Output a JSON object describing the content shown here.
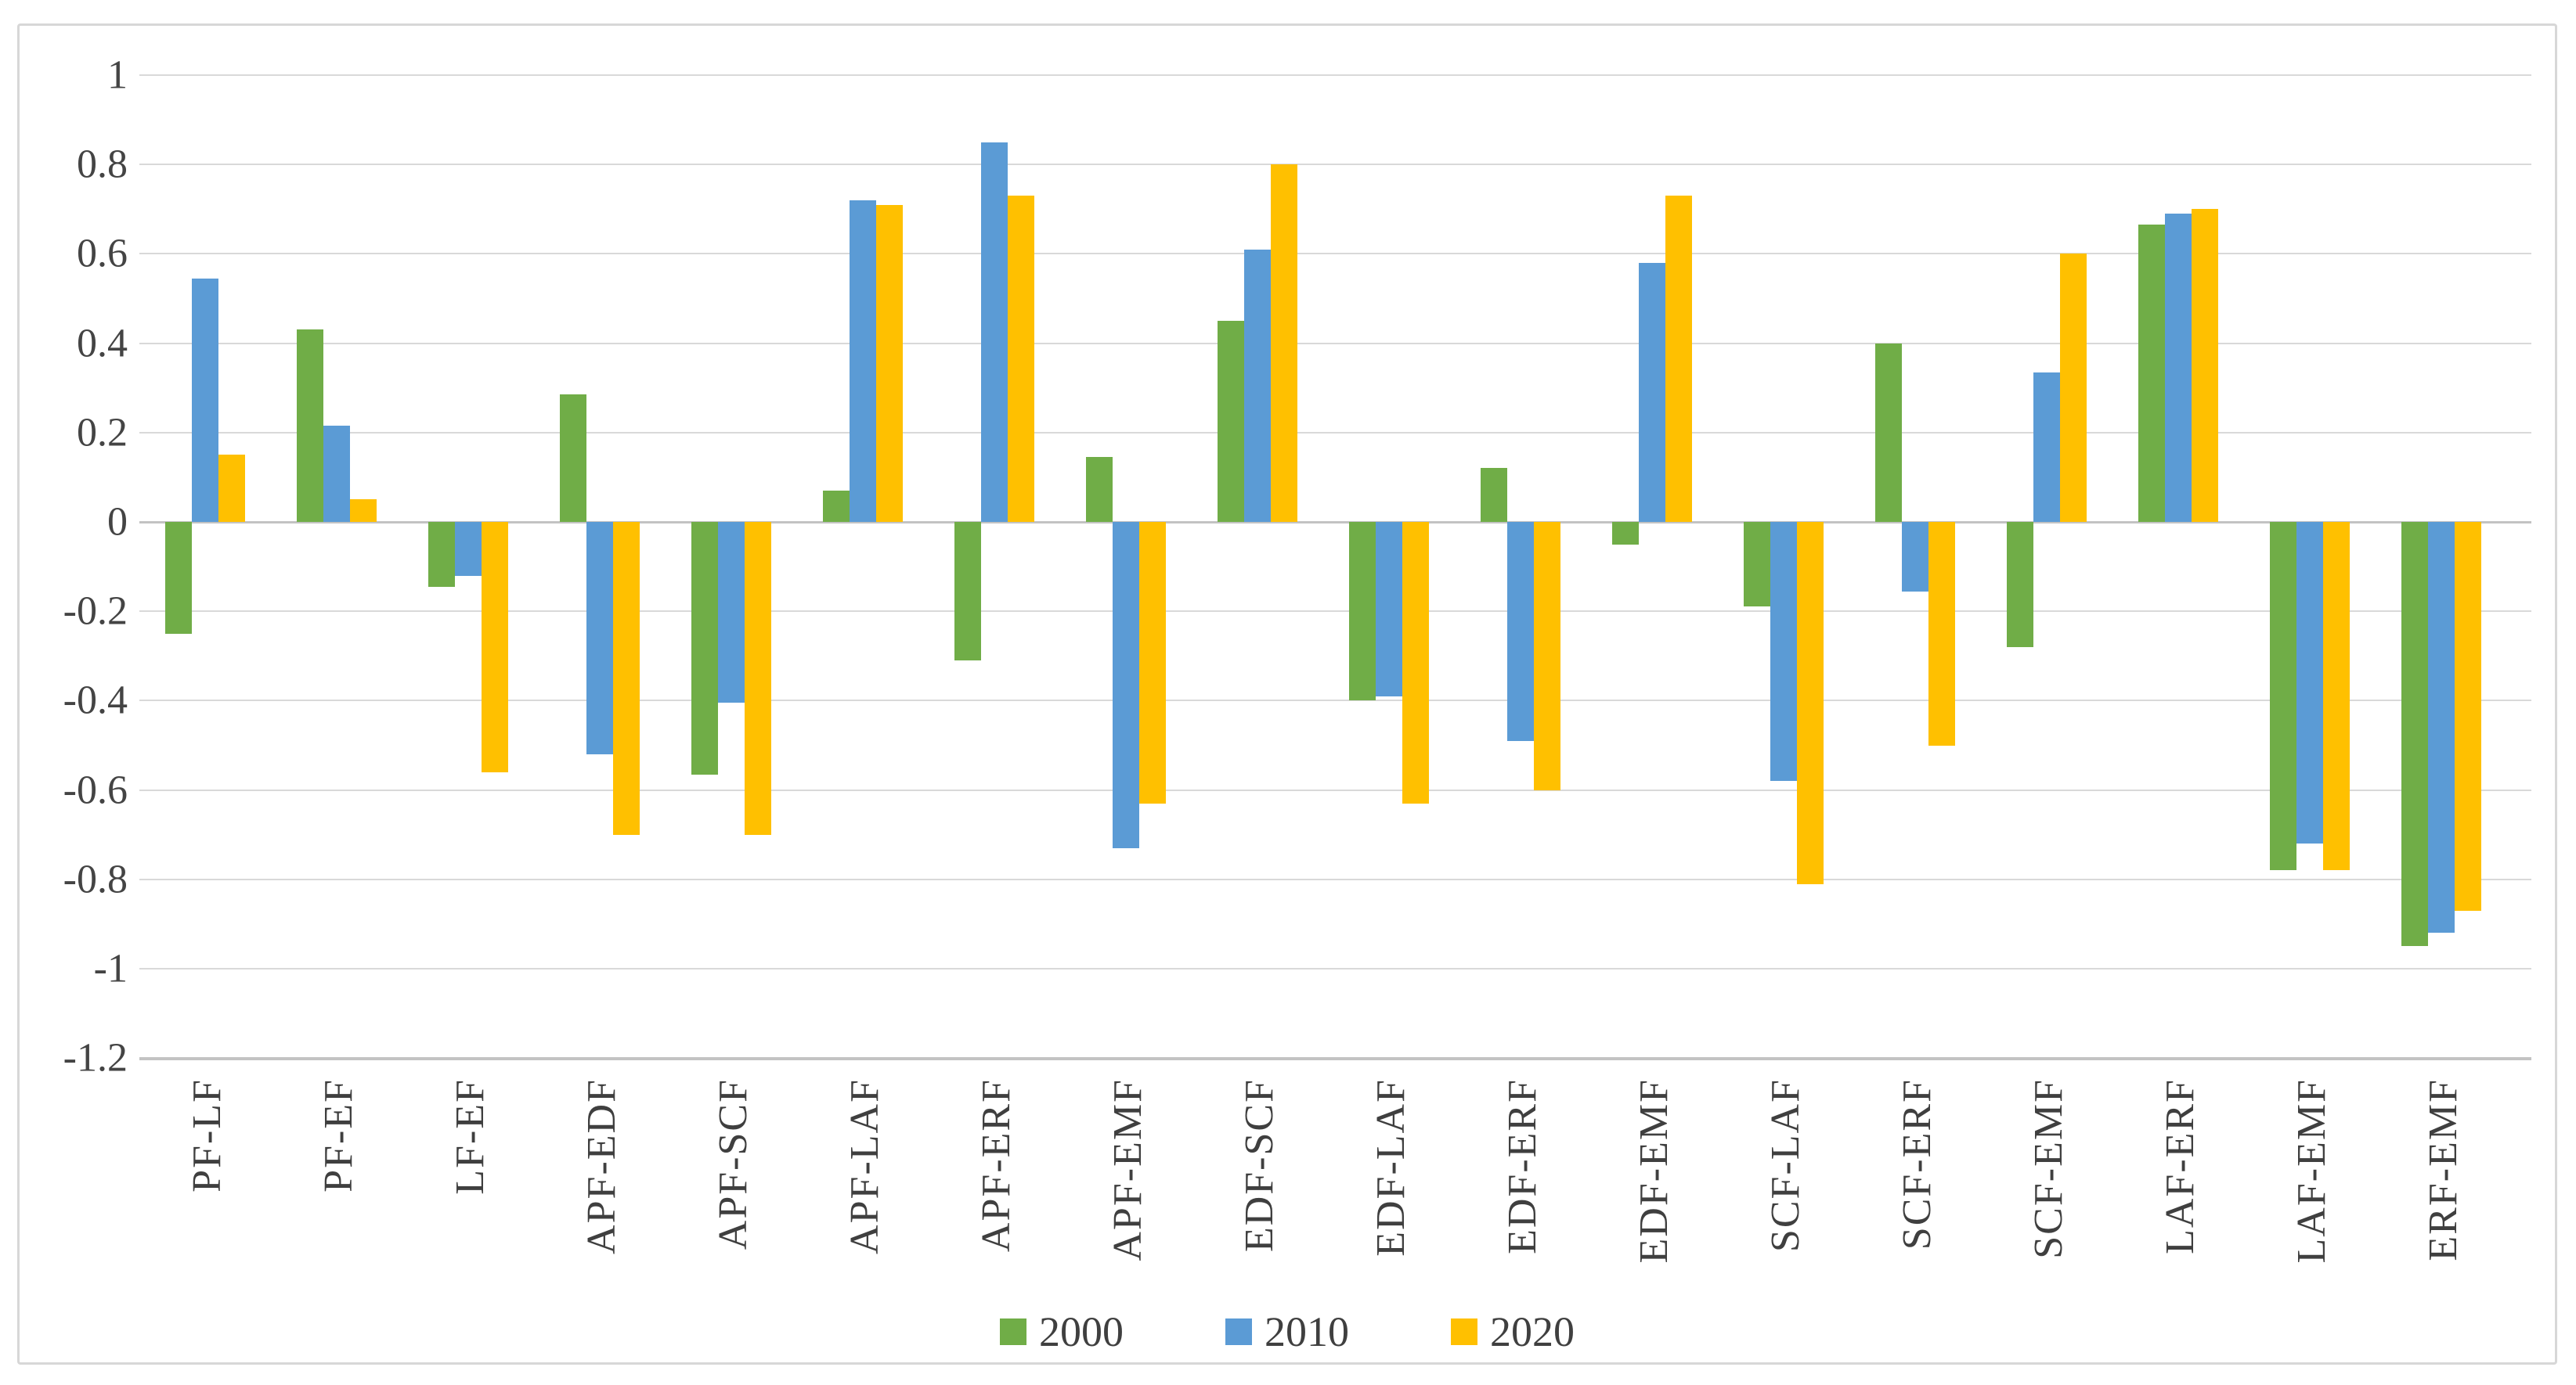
{
  "chart_data": {
    "type": "bar",
    "title": "",
    "xlabel": "",
    "ylabel": "",
    "categories": [
      "PF-LF",
      "PF-EF",
      "LF-EF",
      "APF-EDF",
      "APF-SCF",
      "APF-LAF",
      "APF-ERF",
      "APF-EMF",
      "EDF-SCF",
      "EDF-LAF",
      "EDF-ERF",
      "EDF-EMF",
      "SCF-LAF",
      "SCF-ERF",
      "SCF-EMF",
      "LAF-ERF",
      "LAF-EMF",
      "ERF-EMF"
    ],
    "series": [
      {
        "name": "2000",
        "color": "#70AD47",
        "values": [
          -0.25,
          0.43,
          -0.145,
          0.285,
          -0.565,
          0.07,
          -0.31,
          0.145,
          0.45,
          -0.4,
          0.12,
          -0.05,
          -0.19,
          0.4,
          -0.28,
          0.665,
          -0.78,
          -0.95
        ]
      },
      {
        "name": "2010",
        "color": "#5B9BD5",
        "values": [
          0.545,
          0.215,
          -0.12,
          -0.52,
          -0.405,
          0.72,
          0.85,
          -0.73,
          0.61,
          -0.39,
          -0.49,
          0.58,
          -0.58,
          -0.155,
          0.335,
          0.69,
          -0.72,
          -0.92
        ]
      },
      {
        "name": "2020",
        "color": "#FFC000",
        "values": [
          0.15,
          0.05,
          -0.56,
          -0.7,
          -0.7,
          0.71,
          0.73,
          -0.63,
          0.8,
          -0.63,
          -0.6,
          0.73,
          -0.81,
          -0.5,
          0.6,
          0.7,
          -0.78,
          -0.87
        ]
      }
    ],
    "ylim": [
      -1.2,
      1.0
    ],
    "ytick_step": 0.2,
    "yticks": [
      {
        "v": 1.0,
        "label": "1"
      },
      {
        "v": 0.8,
        "label": "0.8"
      },
      {
        "v": 0.6,
        "label": "0.6"
      },
      {
        "v": 0.4,
        "label": "0.4"
      },
      {
        "v": 0.2,
        "label": "0.2"
      },
      {
        "v": 0.0,
        "label": "0"
      },
      {
        "v": -0.2,
        "label": "-0.2"
      },
      {
        "v": -0.4,
        "label": "-0.4"
      },
      {
        "v": -0.6,
        "label": "-0.6"
      },
      {
        "v": -0.8,
        "label": "-0.8"
      },
      {
        "v": -1.0,
        "label": "-1"
      },
      {
        "v": -1.2,
        "label": "-1.2"
      }
    ],
    "grid": true,
    "legend_position": "bottom",
    "colors": {
      "gridline": "#d9d9d9",
      "axis_line": "#c3c3c3",
      "label_text": "#3f3f3f",
      "background": "#ffffff",
      "frame_border": "#d7d7d7"
    }
  }
}
